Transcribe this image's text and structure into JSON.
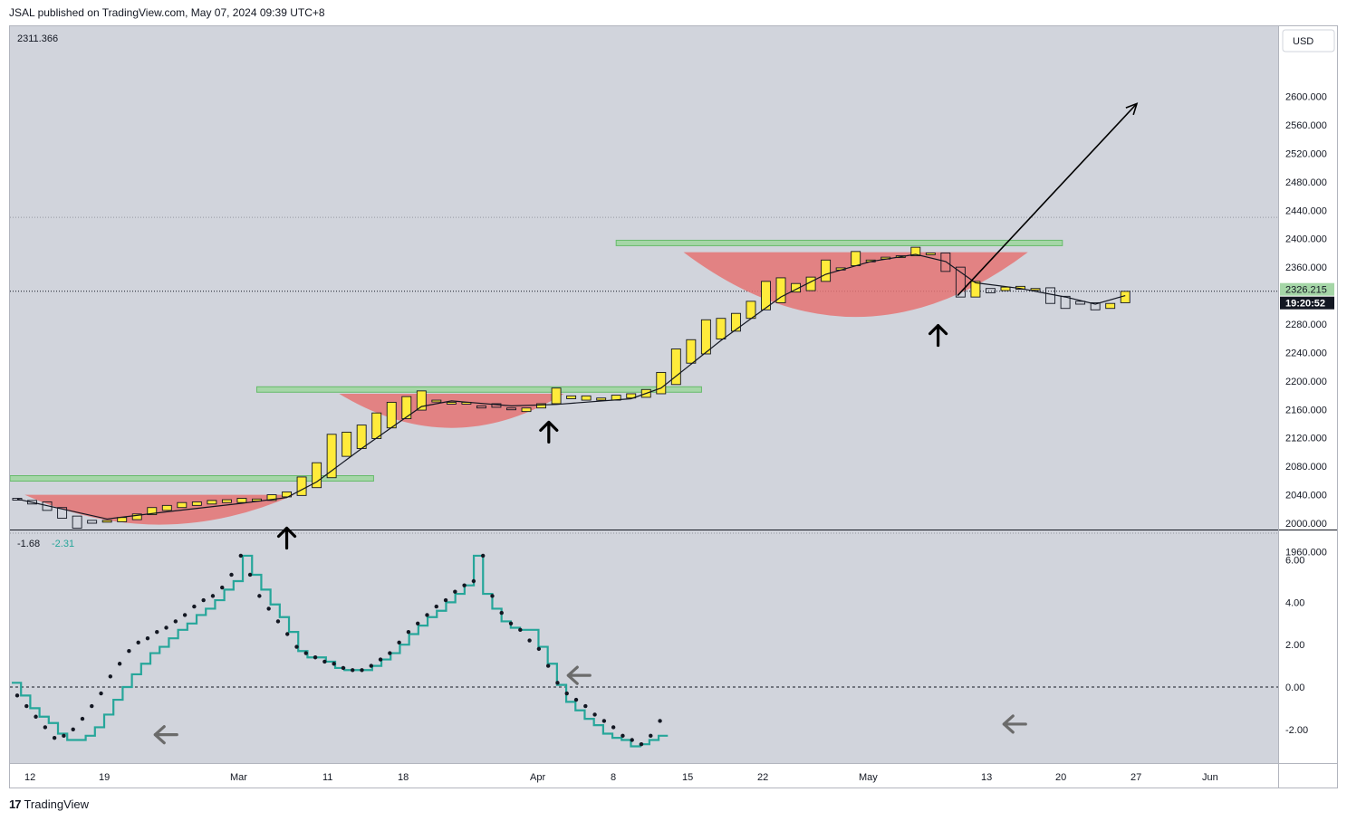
{
  "header": {
    "published": "JSAL published on TradingView.com, May 07, 2024 09:39 UTC+8"
  },
  "footer": {
    "brand": "TradingView"
  },
  "colors": {
    "bull": "#ffeb3b",
    "resistance": "#a5d6a7",
    "cup": "#e57373",
    "oscillator": "#26a69a",
    "background": "#d1d4dc"
  },
  "chart_data": [
    {
      "type": "candlestick",
      "currency": "USD",
      "top_left_value": "2311.366",
      "last_price_label": "2326.215",
      "countdown_label": "19:20:52",
      "y_ticks": [
        "2600.000",
        "2560.000",
        "2520.000",
        "2480.000",
        "2440.000",
        "2400.000",
        "2360.000",
        "2320.000",
        "2280.000",
        "2240.000",
        "2200.000",
        "2160.000",
        "2120.000",
        "2080.000",
        "2040.000",
        "2000.000",
        "1960.000"
      ],
      "y_range": [
        1955,
        2670
      ],
      "x_ticks": [
        "12",
        "19",
        "Mar",
        "11",
        "18",
        "Apr",
        "8",
        "15",
        "22",
        "May",
        "13",
        "20",
        "27",
        "Jun"
      ],
      "candles": [
        {
          "o": 2035,
          "c": 2033
        },
        {
          "o": 2032,
          "c": 2027
        },
        {
          "o": 2030,
          "c": 2018
        },
        {
          "o": 2022,
          "c": 2007
        },
        {
          "o": 2010,
          "c": 1993
        },
        {
          "o": 2004,
          "c": 2000
        },
        {
          "o": 2002,
          "c": 2004
        },
        {
          "o": 2002,
          "c": 2008
        },
        {
          "o": 2005,
          "c": 2013
        },
        {
          "o": 2012,
          "c": 2022
        },
        {
          "o": 2018,
          "c": 2025
        },
        {
          "o": 2022,
          "c": 2029
        },
        {
          "o": 2025,
          "c": 2030
        },
        {
          "o": 2027,
          "c": 2032
        },
        {
          "o": 2029,
          "c": 2033
        },
        {
          "o": 2029,
          "c": 2035
        },
        {
          "o": 2031,
          "c": 2034
        },
        {
          "o": 2032,
          "c": 2040
        },
        {
          "o": 2037,
          "c": 2044
        },
        {
          "o": 2039,
          "c": 2065
        },
        {
          "o": 2050,
          "c": 2085
        },
        {
          "o": 2064,
          "c": 2125
        },
        {
          "o": 2094,
          "c": 2128
        },
        {
          "o": 2105,
          "c": 2138
        },
        {
          "o": 2119,
          "c": 2155
        },
        {
          "o": 2134,
          "c": 2170
        },
        {
          "o": 2147,
          "c": 2178
        },
        {
          "o": 2159,
          "c": 2186
        },
        {
          "o": 2172,
          "c": 2173
        },
        {
          "o": 2168,
          "c": 2170
        },
        {
          "o": 2168,
          "c": 2170
        },
        {
          "o": 2165,
          "c": 2162
        },
        {
          "o": 2168,
          "c": 2163
        },
        {
          "o": 2162,
          "c": 2160
        },
        {
          "o": 2157,
          "c": 2162
        },
        {
          "o": 2162,
          "c": 2168
        },
        {
          "o": 2168,
          "c": 2190
        },
        {
          "o": 2175,
          "c": 2179
        },
        {
          "o": 2173,
          "c": 2179
        },
        {
          "o": 2173,
          "c": 2176
        },
        {
          "o": 2173,
          "c": 2180
        },
        {
          "o": 2176,
          "c": 2182
        },
        {
          "o": 2177,
          "c": 2188
        },
        {
          "o": 2182,
          "c": 2212
        },
        {
          "o": 2195,
          "c": 2245
        },
        {
          "o": 2225,
          "c": 2258
        },
        {
          "o": 2238,
          "c": 2286
        },
        {
          "o": 2259,
          "c": 2288
        },
        {
          "o": 2270,
          "c": 2295
        },
        {
          "o": 2288,
          "c": 2312
        },
        {
          "o": 2300,
          "c": 2340
        },
        {
          "o": 2310,
          "c": 2345
        },
        {
          "o": 2325,
          "c": 2337
        },
        {
          "o": 2327,
          "c": 2346
        },
        {
          "o": 2340,
          "c": 2370
        },
        {
          "o": 2356,
          "c": 2359
        },
        {
          "o": 2362,
          "c": 2382
        },
        {
          "o": 2369,
          "c": 2370
        },
        {
          "o": 2372,
          "c": 2374
        },
        {
          "o": 2374,
          "c": 2376
        },
        {
          "o": 2376,
          "c": 2388
        },
        {
          "o": 2380,
          "c": 2380
        },
        {
          "o": 2380,
          "c": 2354
        },
        {
          "o": 2360,
          "c": 2318
        },
        {
          "o": 2318,
          "c": 2340
        },
        {
          "o": 2330,
          "c": 2324
        },
        {
          "o": 2327,
          "c": 2332
        },
        {
          "o": 2329,
          "c": 2333
        },
        {
          "o": 2330,
          "c": 2330
        },
        {
          "o": 2331,
          "c": 2309
        },
        {
          "o": 2319,
          "c": 2302
        },
        {
          "o": 2312,
          "c": 2308
        },
        {
          "o": 2310,
          "c": 2300
        },
        {
          "o": 2302,
          "c": 2309
        },
        {
          "o": 2310,
          "c": 2326
        }
      ],
      "ma": [
        {
          "i": 0,
          "v": 2034
        },
        {
          "i": 3,
          "v": 2020
        },
        {
          "i": 6,
          "v": 2006
        },
        {
          "i": 10,
          "v": 2016
        },
        {
          "i": 15,
          "v": 2028
        },
        {
          "i": 18,
          "v": 2036
        },
        {
          "i": 20,
          "v": 2058
        },
        {
          "i": 23,
          "v": 2105
        },
        {
          "i": 27,
          "v": 2164
        },
        {
          "i": 29,
          "v": 2172
        },
        {
          "i": 33,
          "v": 2165
        },
        {
          "i": 36,
          "v": 2167
        },
        {
          "i": 41,
          "v": 2175
        },
        {
          "i": 43,
          "v": 2190
        },
        {
          "i": 47,
          "v": 2257
        },
        {
          "i": 51,
          "v": 2318
        },
        {
          "i": 54,
          "v": 2350
        },
        {
          "i": 57,
          "v": 2368
        },
        {
          "i": 60,
          "v": 2378
        },
        {
          "i": 62,
          "v": 2368
        },
        {
          "i": 64,
          "v": 2338
        },
        {
          "i": 67,
          "v": 2330
        },
        {
          "i": 70,
          "v": 2318
        },
        {
          "i": 72,
          "v": 2308
        },
        {
          "i": 74,
          "v": 2320
        }
      ],
      "resistance_levels": [
        {
          "price": 2063,
          "from_i": -1,
          "to_i": 23.8
        },
        {
          "price": 2188,
          "from_i": 16,
          "to_i": 45.7
        },
        {
          "price": 2394,
          "from_i": 40,
          "to_i": 69.8
        }
      ],
      "cups": [
        {
          "from_i": 0.5,
          "to_i": 18.5,
          "top": 2040,
          "bottom": 1998
        },
        {
          "from_i": 21.5,
          "to_i": 36.5,
          "top": 2182,
          "bottom": 2134
        },
        {
          "from_i": 44.5,
          "to_i": 67.5,
          "top": 2381,
          "bottom": 2290
        }
      ],
      "arrows_up": [
        {
          "i": 18,
          "price": 1993
        },
        {
          "i": 35.5,
          "price": 2142
        },
        {
          "i": 61.5,
          "price": 2278
        }
      ],
      "projection": {
        "from_i": 62.8,
        "from_p": 2320,
        "to_i": 75.5,
        "to_p": 2590
      },
      "dotted_levels": [
        2430,
        1986
      ]
    },
    {
      "type": "line",
      "values_label": [
        "-1.68",
        "-2.31"
      ],
      "y_ticks": [
        "6.00",
        "4.00",
        "2.00",
        "0.00",
        "-2.00"
      ],
      "y_range": [
        -3.6,
        7.0
      ],
      "step_line": [
        0.2,
        -0.4,
        -1.0,
        -1.4,
        -1.7,
        -2.2,
        -2.5,
        -2.5,
        -2.3,
        -1.9,
        -1.3,
        -0.6,
        0.0,
        0.6,
        1.1,
        1.6,
        1.9,
        2.3,
        2.7,
        3.0,
        3.4,
        3.7,
        4.1,
        4.6,
        5.0,
        6.2,
        5.3,
        4.6,
        3.9,
        3.3,
        2.6,
        1.7,
        1.4,
        1.4,
        1.2,
        0.9,
        0.8,
        0.8,
        0.8,
        1.0,
        1.3,
        1.6,
        2.0,
        2.5,
        2.9,
        3.3,
        3.6,
        4.0,
        4.4,
        4.8,
        6.2,
        4.4,
        3.7,
        3.1,
        2.8,
        2.7,
        2.7,
        1.9,
        1.1,
        0.1,
        -0.7,
        -1.1,
        -1.5,
        -1.8,
        -2.2,
        -2.4,
        -2.5,
        -2.8,
        -2.7,
        -2.5,
        -2.3
      ],
      "dots": [
        -0.4,
        -0.9,
        -1.4,
        -1.9,
        -2.4,
        -2.3,
        -2.0,
        -1.5,
        -0.9,
        -0.3,
        0.5,
        1.1,
        1.7,
        2.1,
        2.3,
        2.6,
        2.8,
        3.1,
        3.4,
        3.8,
        4.1,
        4.3,
        4.7,
        5.3,
        6.2,
        5.3,
        4.3,
        3.7,
        3.1,
        2.5,
        1.9,
        1.6,
        1.4,
        1.2,
        1.1,
        0.9,
        0.8,
        0.8,
        1.0,
        1.3,
        1.6,
        2.1,
        2.6,
        3.0,
        3.4,
        3.8,
        4.1,
        4.5,
        4.8,
        5.0,
        6.2,
        4.3,
        3.5,
        3.0,
        2.7,
        2.2,
        1.8,
        1.0,
        0.2,
        -0.3,
        -0.6,
        -0.9,
        -1.3,
        -1.6,
        -1.9,
        -2.3,
        -2.5,
        -2.7,
        -2.3,
        -1.6
      ],
      "arrows_left": [
        {
          "i": 12.5,
          "v": -2.25
        },
        {
          "i": 50.5,
          "v": 0.55
        },
        {
          "i": 86.5,
          "v": -1.75
        }
      ]
    }
  ]
}
